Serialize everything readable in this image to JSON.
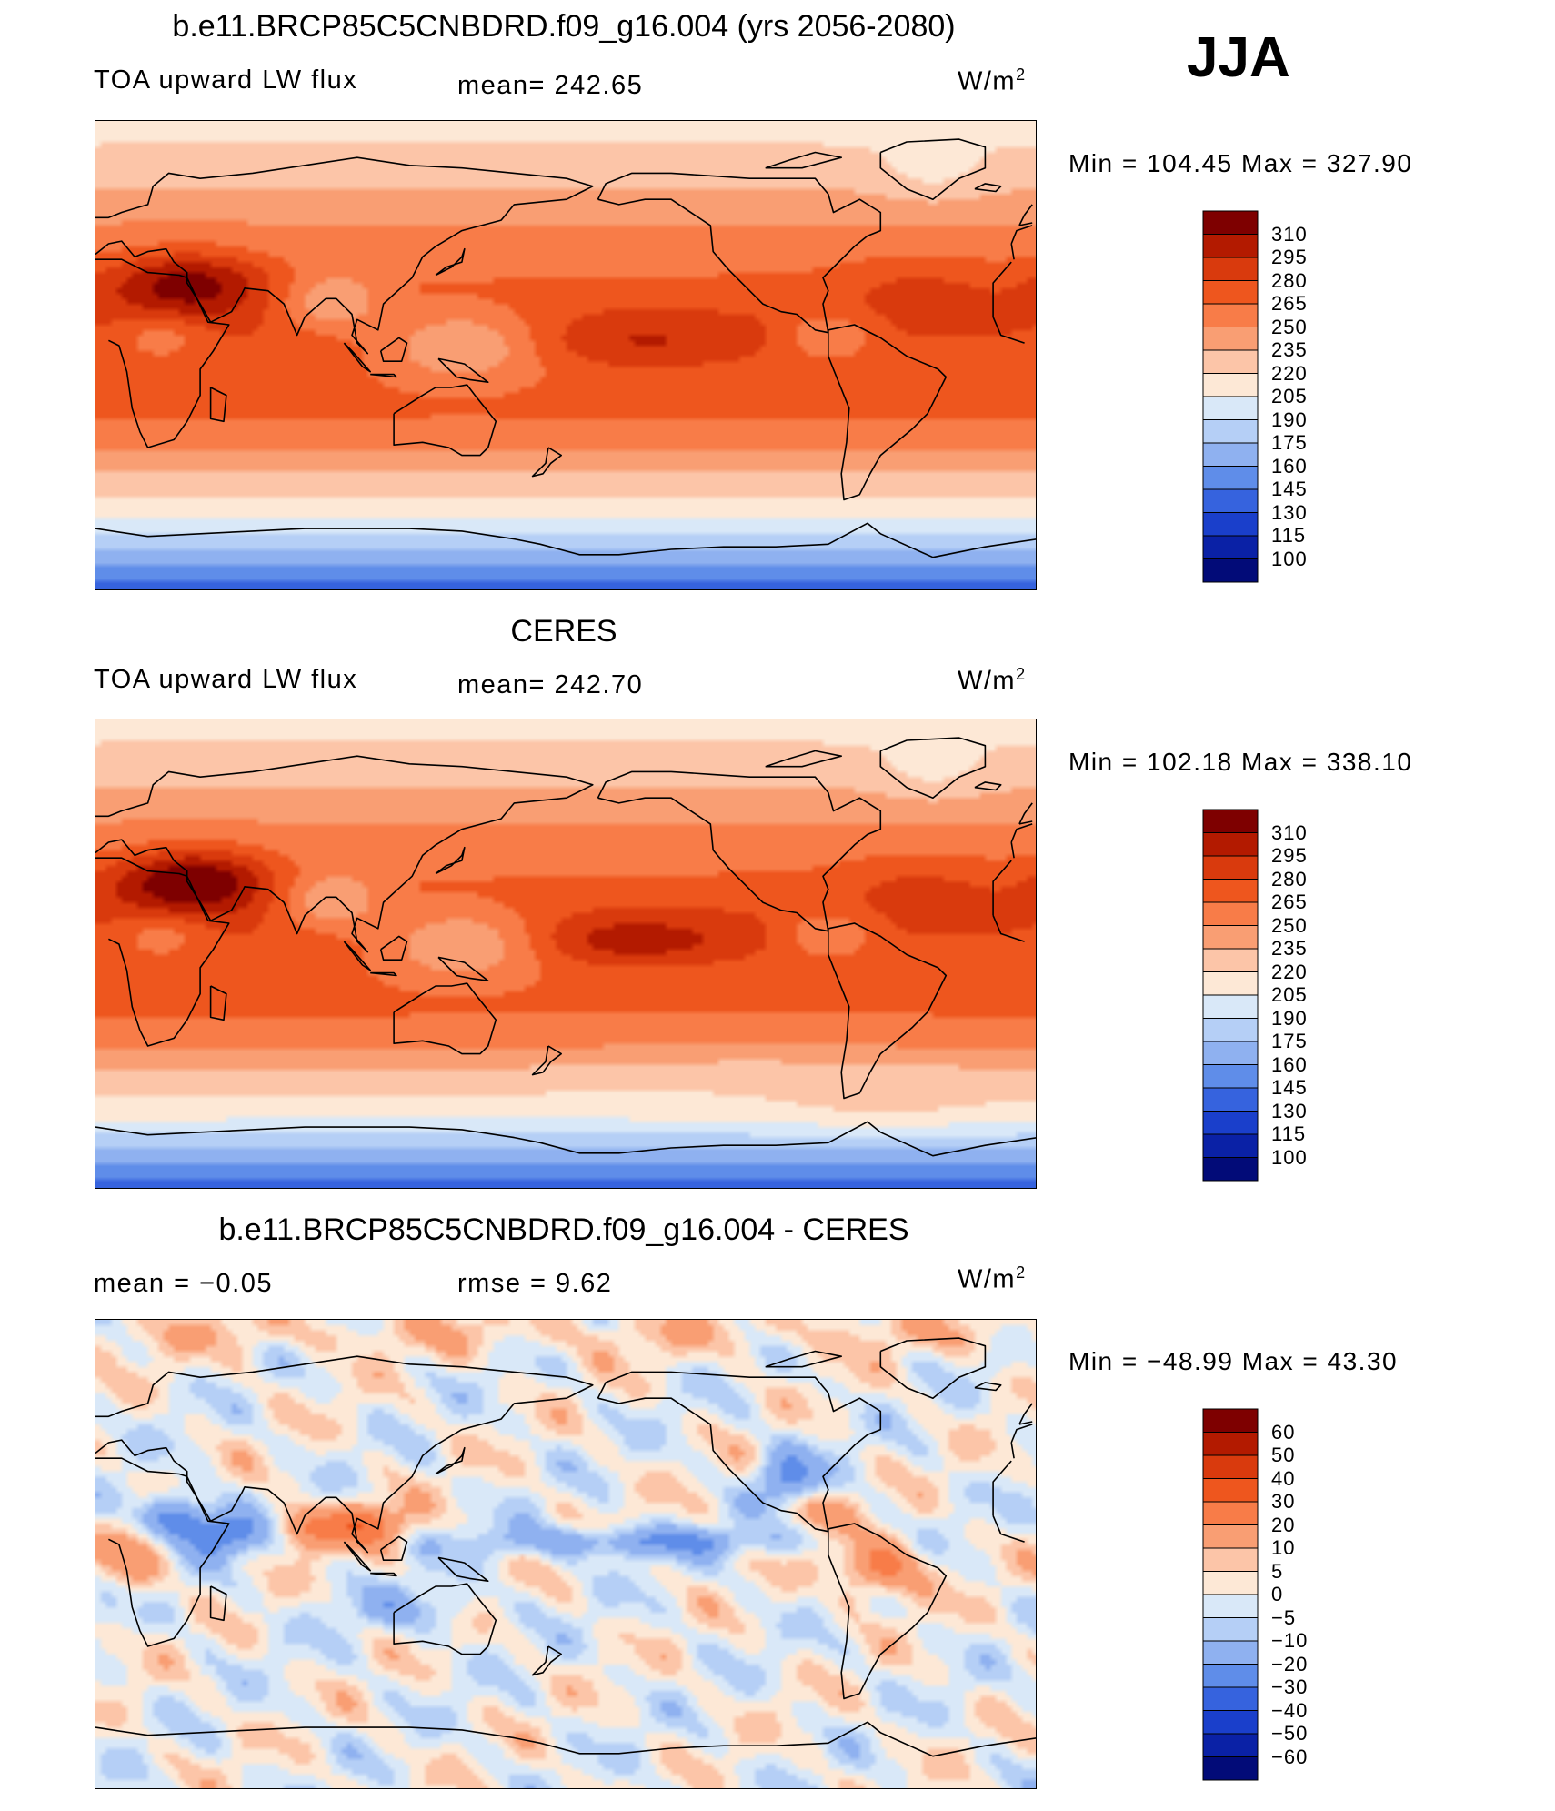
{
  "season": "JJA",
  "chart_data": [
    {
      "type": "heatmap",
      "title": "b.e11.BRCP85C5CNBDRD.f09_g16.004 (yrs 2056-2080)",
      "left_label": "TOA upward LW flux",
      "center_label": "mean=  242.65",
      "units_label": "W/m",
      "units_sup": "2",
      "min_max": "Min  =  104.45  Max  =  327.90",
      "field": "model",
      "colorbar": {
        "levels": [
          "310",
          "295",
          "280",
          "265",
          "250",
          "235",
          "220",
          "205",
          "190",
          "175",
          "160",
          "145",
          "130",
          "115",
          "100"
        ],
        "colors": [
          "#7e0000",
          "#b31a00",
          "#d93a0d",
          "#ee561e",
          "#f87c48",
          "#f99e73",
          "#fcc5a8",
          "#fde8d6",
          "#d9e8f8",
          "#b5cff6",
          "#8fb1f0",
          "#5f8de9",
          "#3663de",
          "#1a3fcb",
          "#0a21a6",
          "#020b78"
        ]
      }
    },
    {
      "type": "heatmap",
      "title": "CERES",
      "left_label": "TOA upward LW flux",
      "center_label": "mean=  242.70",
      "units_label": "W/m",
      "units_sup": "2",
      "min_max": "Min  =  102.18  Max  =  338.10",
      "field": "obs",
      "colorbar": {
        "levels": [
          "310",
          "295",
          "280",
          "265",
          "250",
          "235",
          "220",
          "205",
          "190",
          "175",
          "160",
          "145",
          "130",
          "115",
          "100"
        ],
        "colors": [
          "#7e0000",
          "#b31a00",
          "#d93a0d",
          "#ee561e",
          "#f87c48",
          "#f99e73",
          "#fcc5a8",
          "#fde8d6",
          "#d9e8f8",
          "#b5cff6",
          "#8fb1f0",
          "#5f8de9",
          "#3663de",
          "#1a3fcb",
          "#0a21a6",
          "#020b78"
        ]
      }
    },
    {
      "type": "heatmap",
      "title": "b.e11.BRCP85C5CNBDRD.f09_g16.004 - CERES",
      "left_label": "mean =    −0.05",
      "center_label": "rmse =     9.62",
      "units_label": "W/m",
      "units_sup": "2",
      "min_max": "Min  =  −48.99  Max  =    43.30",
      "field": "diff",
      "colorbar": {
        "levels": [
          "60",
          "50",
          "40",
          "30",
          "20",
          "10",
          "5",
          "0",
          "−5",
          "−10",
          "−20",
          "−30",
          "−40",
          "−50",
          "−60"
        ],
        "colors": [
          "#7e0000",
          "#b31a00",
          "#d93a0d",
          "#ee561e",
          "#f87c48",
          "#f99e73",
          "#fcc5a8",
          "#fde8d6",
          "#d9e8f8",
          "#b5cff6",
          "#8fb1f0",
          "#5f8de9",
          "#3663de",
          "#1a3fcb",
          "#0a21a6",
          "#020b78"
        ]
      }
    }
  ]
}
